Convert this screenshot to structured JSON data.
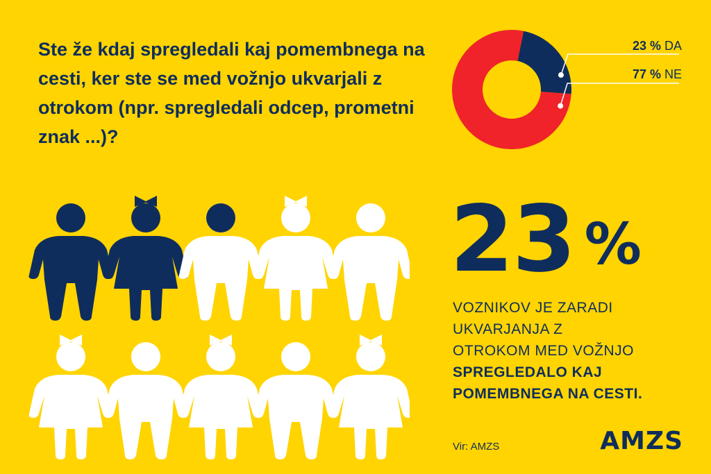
{
  "question": "Ste že kdaj spregledali kaj pomembnega na cesti, ker ste se med vožnjo ukvarjali z otrokom (npr. spregledali odcep, prometni znak ...)?",
  "colors": {
    "background": "#FFD400",
    "navy": "#0F2D5C",
    "red": "#EF2329",
    "white": "#FFFFFF"
  },
  "chart_data": [
    {
      "type": "pie",
      "style": "donut",
      "categories": [
        "DA",
        "NE"
      ],
      "values": [
        23,
        77
      ],
      "colors": [
        "#0F2D5C",
        "#EF2329"
      ],
      "labels": [
        {
          "pct": "23 %",
          "name": "DA"
        },
        {
          "pct": "77 %",
          "name": "NE"
        }
      ]
    },
    {
      "type": "pictogram",
      "total": 10,
      "rows": 2,
      "per_row": 5,
      "icons": [
        {
          "figure": "boy",
          "fill": "full"
        },
        {
          "figure": "girl",
          "fill": "full"
        },
        {
          "figure": "boy",
          "fill": 0.3
        },
        {
          "figure": "girl",
          "fill": "none"
        },
        {
          "figure": "boy",
          "fill": "none"
        },
        {
          "figure": "girl",
          "fill": "none"
        },
        {
          "figure": "boy",
          "fill": "none"
        },
        {
          "figure": "girl",
          "fill": "none"
        },
        {
          "figure": "boy",
          "fill": "none"
        },
        {
          "figure": "girl",
          "fill": "none"
        }
      ],
      "value_percent": 23
    }
  ],
  "headline": {
    "number": "23",
    "sign": "%"
  },
  "description": {
    "lines": [
      "VOZNIKOV JE ZARADI",
      "UKVARJANJA Z",
      "OTROKOM MED VOŽNJO"
    ],
    "bold_lines": [
      "SPREGLEDALO KAJ",
      "POMEMBNEGA NA CESTI."
    ]
  },
  "source": "Vir: AMZS",
  "logo": "AMZS"
}
